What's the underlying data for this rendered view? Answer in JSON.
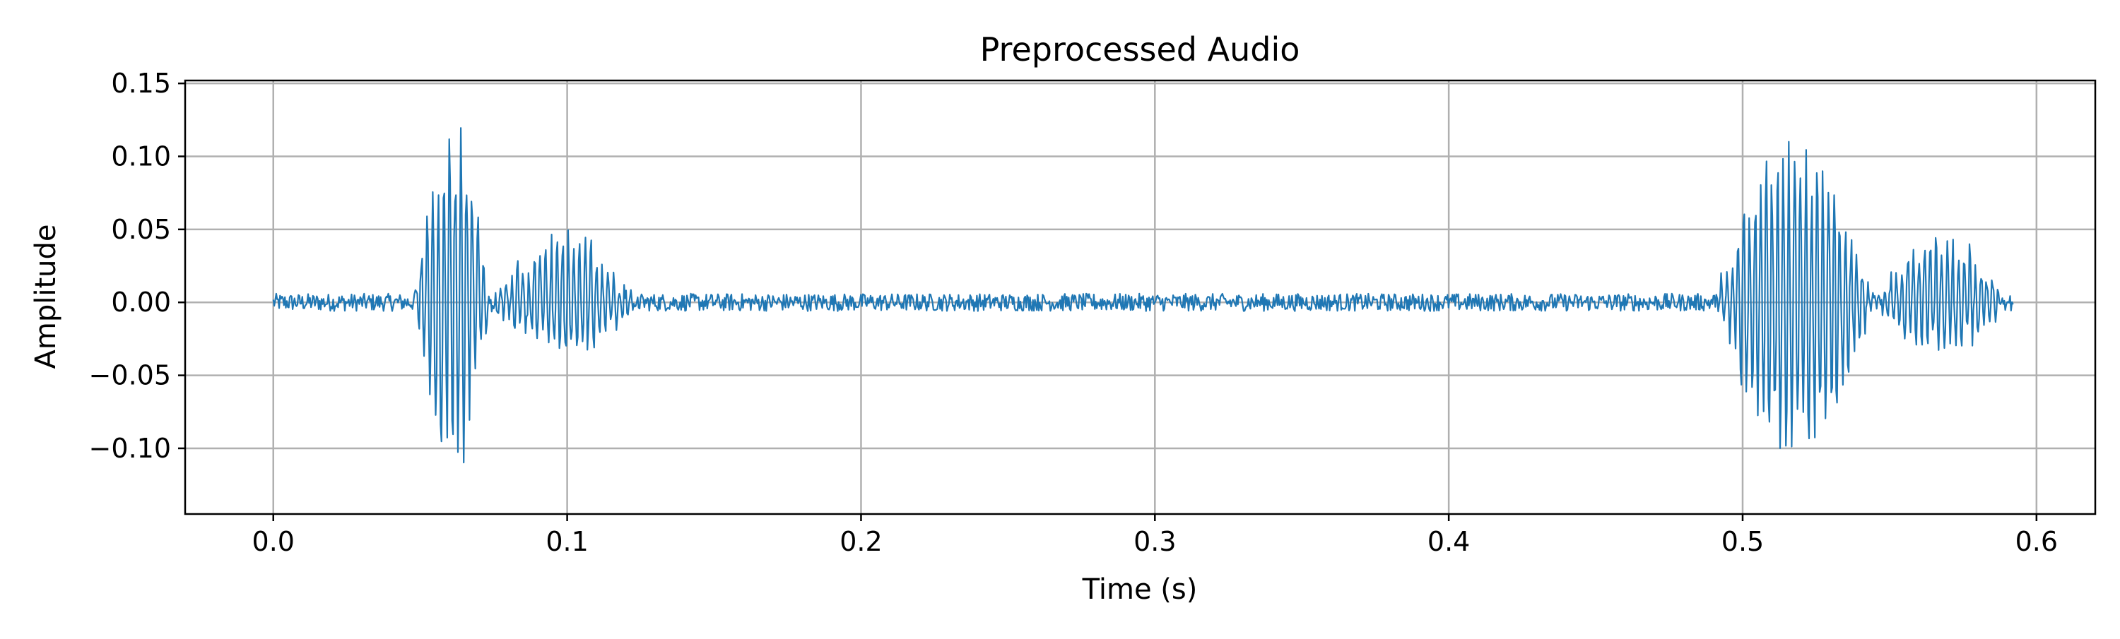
{
  "chart_data": {
    "type": "line",
    "title": "Preprocessed Audio",
    "xlabel": "Time (s)",
    "ylabel": "Amplitude",
    "xlim": [
      -0.03,
      0.62
    ],
    "ylim": [
      -0.145,
      0.152
    ],
    "x_ticks": [
      0.0,
      0.1,
      0.2,
      0.3,
      0.4,
      0.5,
      0.6
    ],
    "x_tick_labels": [
      "0.0",
      "0.1",
      "0.2",
      "0.3",
      "0.4",
      "0.5",
      "0.6"
    ],
    "y_ticks": [
      -0.1,
      -0.05,
      0.0,
      0.05,
      0.1,
      0.15
    ],
    "y_tick_labels": [
      "−0.10",
      "−0.05",
      "0.00",
      "0.05",
      "0.10",
      "0.15"
    ],
    "grid": true,
    "series": [
      {
        "color": "#1f77b4",
        "x_start": 0.0,
        "x_end": 0.592,
        "noise_amplitude": 0.006,
        "bursts": [
          {
            "t_start": 0.048,
            "t_end": 0.074,
            "peak": 0.14,
            "min": -0.13
          },
          {
            "t_start": 0.074,
            "t_end": 0.124,
            "peak": 0.052,
            "min": -0.04
          },
          {
            "t_start": 0.49,
            "t_end": 0.545,
            "peak": 0.122,
            "min": -0.115
          },
          {
            "t_start": 0.545,
            "t_end": 0.59,
            "peak": 0.05,
            "min": -0.04
          }
        ]
      }
    ]
  }
}
